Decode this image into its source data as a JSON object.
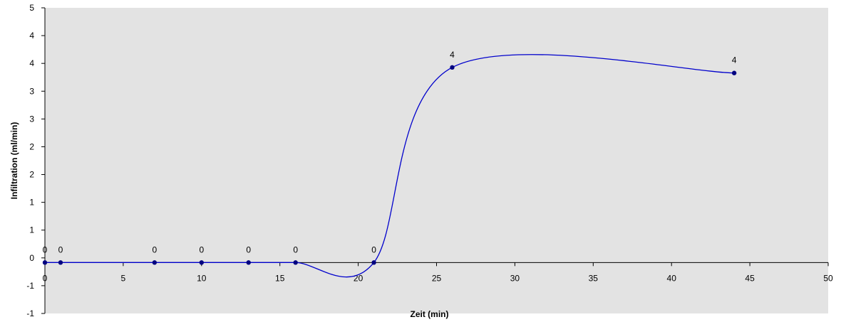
{
  "chart_data": {
    "type": "scatter",
    "smooth": true,
    "xlabel": "Zeit (min)",
    "ylabel": "Infiltration (ml/min)",
    "xlim": [
      0,
      50
    ],
    "ylim": [
      -1,
      5
    ],
    "x_ticks": [
      0,
      5,
      10,
      15,
      20,
      25,
      30,
      35,
      40,
      45,
      50
    ],
    "y_tick_labels": [
      "-1",
      "-1",
      "0",
      "1",
      "1",
      "2",
      "2",
      "3",
      "3",
      "4",
      "4",
      "5"
    ],
    "grid": false,
    "legend": "none",
    "plot_background": "#e3e3e3",
    "series": [
      {
        "color": "#0000cc",
        "x": [
          0,
          1,
          7,
          10,
          13,
          16,
          21,
          26,
          44
        ],
        "y": [
          0,
          0,
          0,
          0,
          0,
          0,
          0,
          3.83,
          3.72
        ],
        "labels": [
          "0",
          "0",
          "0",
          "0",
          "0",
          "0",
          "0",
          "4",
          "4"
        ]
      }
    ]
  }
}
